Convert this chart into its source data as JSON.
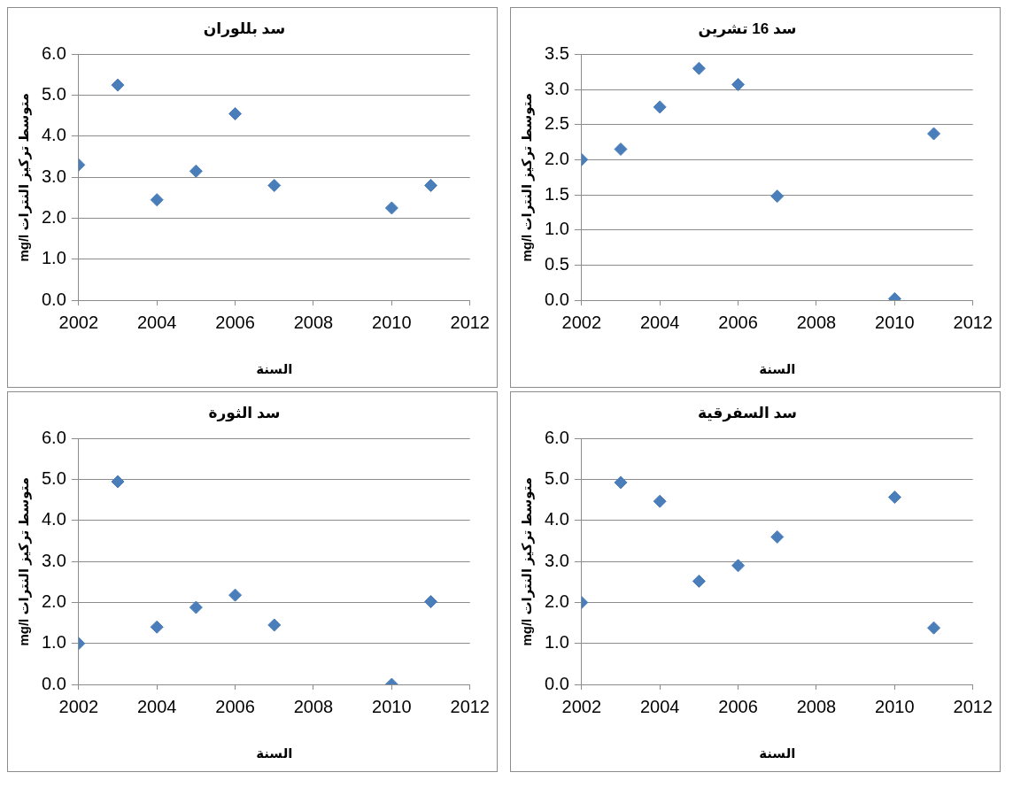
{
  "chart_data": [
    {
      "type": "scatter",
      "title": "سد بللوران",
      "xlabel": "السنة",
      "ylabel": "mg/l متوسط تركيز النترات",
      "x": [
        2002,
        2003,
        2004,
        2005,
        2006,
        2007,
        2010,
        2011
      ],
      "values": [
        3.3,
        5.25,
        2.45,
        3.15,
        4.55,
        2.8,
        2.25,
        2.8
      ],
      "color": "#4a7ebb",
      "marker": "diamond",
      "grid": "y",
      "xlim": [
        2002,
        2012
      ],
      "xticks": [
        2002,
        2004,
        2006,
        2008,
        2010,
        2012
      ],
      "ylim": [
        0,
        6
      ],
      "yticks": [
        {
          "value": 0,
          "label": "0.0"
        },
        {
          "value": 1,
          "label": "1.0"
        },
        {
          "value": 2,
          "label": "2.0"
        },
        {
          "value": 3,
          "label": "3.0"
        },
        {
          "value": 4,
          "label": "4.0"
        },
        {
          "value": 5,
          "label": "5.0"
        },
        {
          "value": 6,
          "label": "6.0"
        }
      ]
    },
    {
      "type": "scatter",
      "title": "سد 16 تشرين",
      "xlabel": "السنة",
      "ylabel": "mg/l متوسط تركيز النترات",
      "x": [
        2002,
        2003,
        2004,
        2005,
        2006,
        2007,
        2010,
        2011
      ],
      "values": [
        2.0,
        2.15,
        2.75,
        3.3,
        3.07,
        1.48,
        0.02,
        2.37
      ],
      "color": "#4a7ebb",
      "marker": "diamond",
      "grid": "y",
      "xlim": [
        2002,
        2012
      ],
      "xticks": [
        2002,
        2004,
        2006,
        2008,
        2010,
        2012
      ],
      "ylim": [
        0,
        3.5
      ],
      "yticks": [
        {
          "value": 0,
          "label": "0.0"
        },
        {
          "value": 0.5,
          "label": "0.5"
        },
        {
          "value": 1,
          "label": "1.0"
        },
        {
          "value": 1.5,
          "label": "1.5"
        },
        {
          "value": 2,
          "label": "2.0"
        },
        {
          "value": 2.5,
          "label": "2.5"
        },
        {
          "value": 3,
          "label": "3.0"
        },
        {
          "value": 3.5,
          "label": "3.5"
        }
      ]
    },
    {
      "type": "scatter",
      "title": "سد الثورة",
      "xlabel": "السنة",
      "ylabel": "mg/l متوسط تركيز النترات",
      "x": [
        2002,
        2003,
        2004,
        2005,
        2006,
        2007,
        2010,
        2011
      ],
      "values": [
        1.0,
        4.95,
        1.4,
        1.88,
        2.18,
        1.45,
        0.0,
        2.02
      ],
      "color": "#4a7ebb",
      "marker": "diamond",
      "grid": "y",
      "xlim": [
        2002,
        2012
      ],
      "xticks": [
        2002,
        2004,
        2006,
        2008,
        2010,
        2012
      ],
      "ylim": [
        0,
        6
      ],
      "yticks": [
        {
          "value": 0,
          "label": "0.0"
        },
        {
          "value": 1,
          "label": "1.0"
        },
        {
          "value": 2,
          "label": "2.0"
        },
        {
          "value": 3,
          "label": "3.0"
        },
        {
          "value": 4,
          "label": "4.0"
        },
        {
          "value": 5,
          "label": "5.0"
        },
        {
          "value": 6,
          "label": "6.0"
        }
      ]
    },
    {
      "type": "scatter",
      "title": "سد السفرقية",
      "xlabel": "السنة",
      "ylabel": "mg/l متوسط تركيز النترات",
      "x": [
        2002,
        2003,
        2004,
        2005,
        2006,
        2007,
        2010,
        2011
      ],
      "values": [
        2.0,
        4.93,
        4.47,
        2.52,
        2.9,
        3.6,
        4.57,
        1.38
      ],
      "color": "#4a7ebb",
      "marker": "diamond",
      "grid": "y",
      "xlim": [
        2002,
        2012
      ],
      "xticks": [
        2002,
        2004,
        2006,
        2008,
        2010,
        2012
      ],
      "ylim": [
        0,
        6
      ],
      "yticks": [
        {
          "value": 0,
          "label": "0.0"
        },
        {
          "value": 1,
          "label": "1.0"
        },
        {
          "value": 2,
          "label": "2.0"
        },
        {
          "value": 3,
          "label": "3.0"
        },
        {
          "value": 4,
          "label": "4.0"
        },
        {
          "value": 5,
          "label": "5.0"
        },
        {
          "value": 6,
          "label": "6.0"
        }
      ]
    }
  ]
}
